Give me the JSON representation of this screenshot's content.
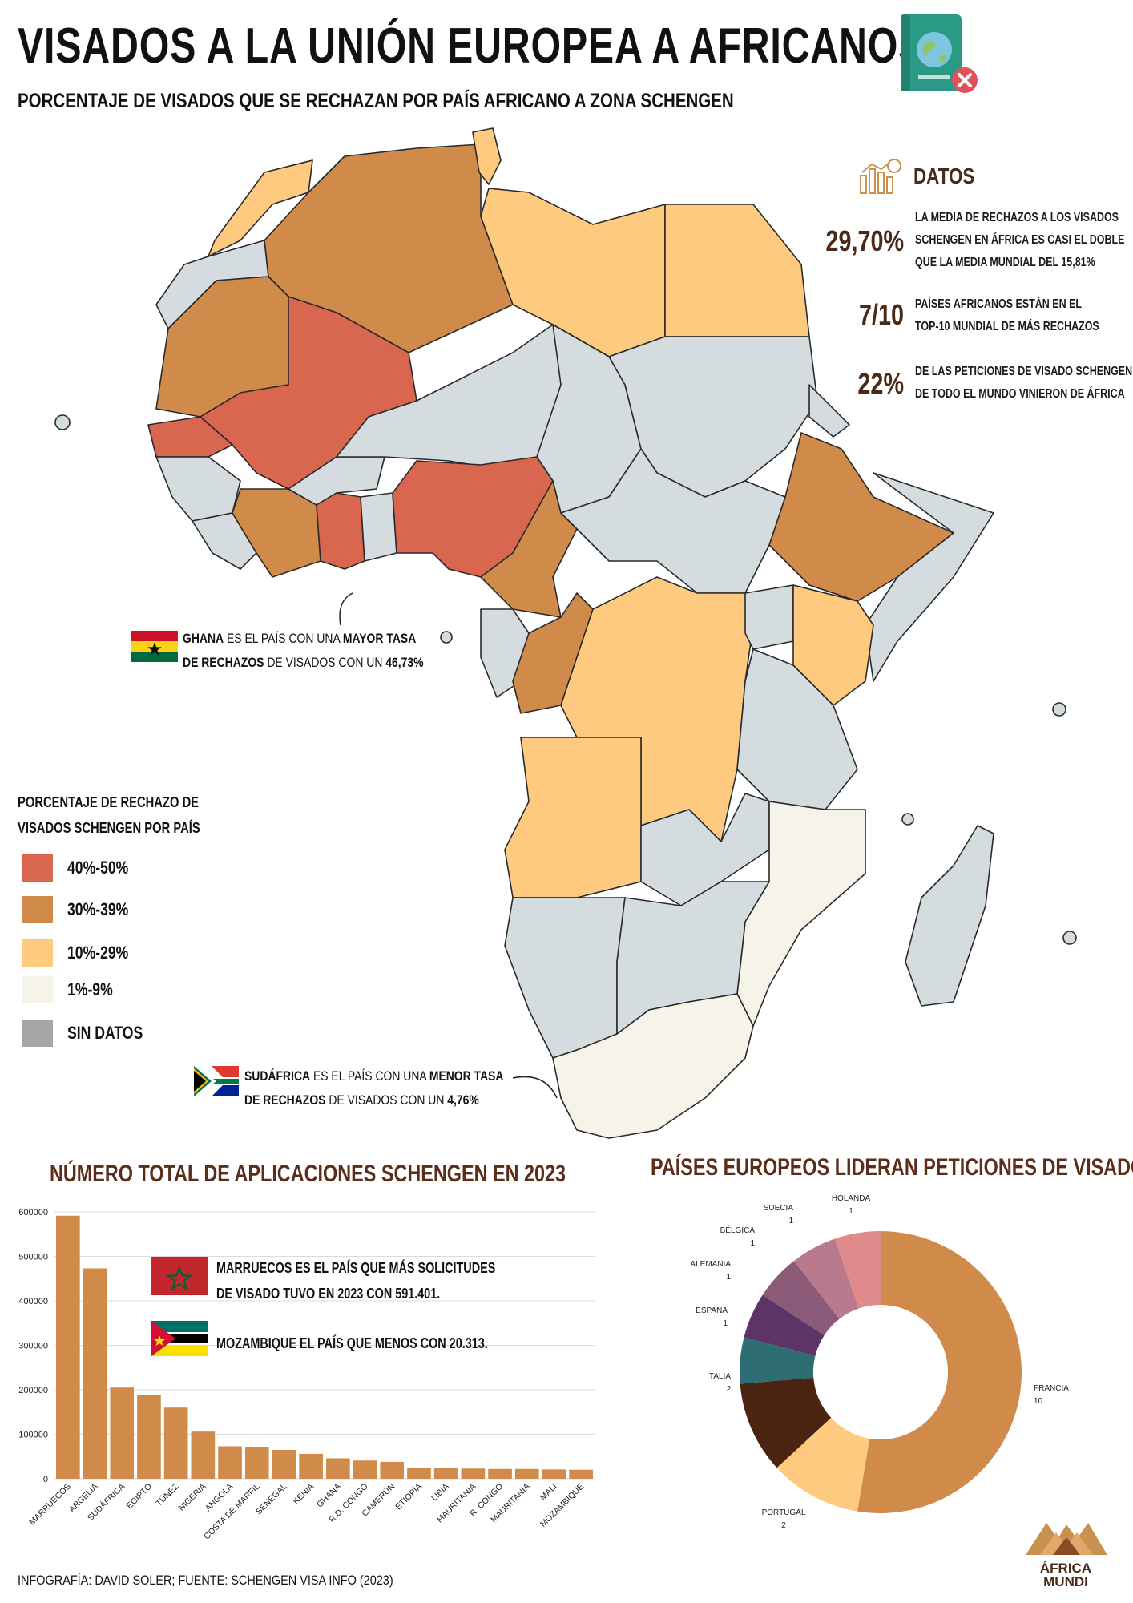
{
  "header": {
    "title": "VISADOS A LA UNIÓN EUROPEA A AFRICANOS",
    "subtitle": "PORCENTAJE DE VISADOS QUE SE RECHAZAN POR PAÍS AFRICANO A ZONA SCHENGEN"
  },
  "datos": {
    "title": "DATOS",
    "facts": [
      {
        "number": "29,70%",
        "lines": [
          "LA MEDIA DE RECHAZOS A LOS VISADOS",
          "SCHENGEN EN ÁFRICA ES CASI EL DOBLE",
          "QUE LA MEDIA MUNDIAL DEL 15,81%"
        ]
      },
      {
        "number": "7/10",
        "lines": [
          "PAÍSES AFRICANOS ESTÁN EN EL",
          "TOP-10 MUNDIAL DE MÁS RECHAZOS"
        ]
      },
      {
        "number": "22%",
        "lines": [
          "DE LAS PETICIONES DE VISADO SCHENGEN",
          "DE TODO EL MUNDO VINIERON DE ÁFRICA"
        ]
      }
    ]
  },
  "legend": {
    "title_lines": [
      "PORCENTAJE DE RECHAZO DE",
      "VISADOS SCHENGEN POR PAÍS"
    ],
    "items": [
      {
        "label": "40%-50%",
        "color": "#d9674f"
      },
      {
        "label": "30%-39%",
        "color": "#d08a4a"
      },
      {
        "label": "10%-29%",
        "color": "#fdca80"
      },
      {
        "label": "1%-9%",
        "color": "#f6f4e8"
      },
      {
        "label": "SIN DATOS",
        "color": "#a6a6a6"
      }
    ]
  },
  "callouts": {
    "ghana": {
      "p1": "GHANA",
      "p2": " ES EL PAÍS CON UNA ",
      "p3": "MAYOR TASA",
      "p4": "DE RECHAZOS",
      "p5": " DE VISADOS CON UN ",
      "p6": "46,73%"
    },
    "sudafrica": {
      "p1": "SUDÁFRICA",
      "p2": " ES EL PAÍS CON UNA ",
      "p3": "MENOR TASA",
      "p4": "DE RECHAZOS",
      "p5": " DE VISADOS CON UN ",
      "p6": "4,76%"
    }
  },
  "colors": {
    "high": "#d9674f",
    "mid": "#d08a4a",
    "low": "#fdca80",
    "min": "#f6f4e8",
    "nodata": "#d5dcdf",
    "accent": "#5a2e1a"
  },
  "bar_section": {
    "title": "NÚMERO TOTAL DE APLICACIONES SCHENGEN EN 2023",
    "note1_lines": [
      "MARRUECOS ES EL PAÍS QUE MÁS SOLICITUDES",
      "DE VISADO TUVO EN 2023 CON 591.401."
    ],
    "note2": "MOZAMBIQUE EL PAÍS QUE MENOS CON 20.313."
  },
  "donut_section": {
    "title": "PAÍSES EUROPEOS LIDERAN PETICIONES DE VISADOS"
  },
  "chart_data": [
    {
      "type": "bar",
      "title": "NÚMERO TOTAL DE APLICACIONES SCHENGEN EN 2023",
      "categories": [
        "MARRUECOS",
        "ARGELIA",
        "SUDÁFRICA",
        "EGIPTO",
        "TÚNEZ",
        "NIGERIA",
        "ANGOLA",
        "COSTA DE MARFIL",
        "SENEGAL",
        "KENIA",
        "GHANA",
        "R.D. CONGO",
        "CAMERÚN",
        "ETIOPÍA",
        "LIBIA",
        "MAURITANIA",
        "R. CONGO",
        "MAURITANIA",
        "MALI",
        "MOZAMBIQUE"
      ],
      "values": [
        591401,
        473000,
        205000,
        188000,
        160000,
        106000,
        73000,
        72000,
        65000,
        56000,
        46000,
        41000,
        38000,
        25000,
        24000,
        23000,
        22000,
        22000,
        21000,
        20313
      ],
      "yticks": [
        0,
        100000,
        200000,
        300000,
        400000,
        500000,
        600000
      ],
      "ylim": [
        0,
        600000
      ],
      "grid": true
    },
    {
      "type": "pie",
      "title": "PAÍSES EUROPEOS LIDERAN PETICIONES DE VISADOS",
      "donut": true,
      "labels": [
        "FRANCIA",
        "PORTUGAL",
        "ITALIA",
        "ESPAÑA",
        "ALEMANIA",
        "BÉLGICA",
        "SUECIA",
        "HOLANDA"
      ],
      "values": [
        10,
        2,
        2,
        1,
        1,
        1,
        1,
        1
      ],
      "colors": [
        "#d08a4a",
        "#fdca80",
        "#4a2410",
        "#2e6e73",
        "#5c3566",
        "#8a5a78",
        "#b87a8c",
        "#e08a8c"
      ]
    }
  ],
  "footer": "INFOGRAFÍA: DAVID SOLER; FUENTE: SCHENGEN VISA INFO (2023)",
  "logo": {
    "line1": "ÁFRICA",
    "line2": "MUNDI"
  }
}
